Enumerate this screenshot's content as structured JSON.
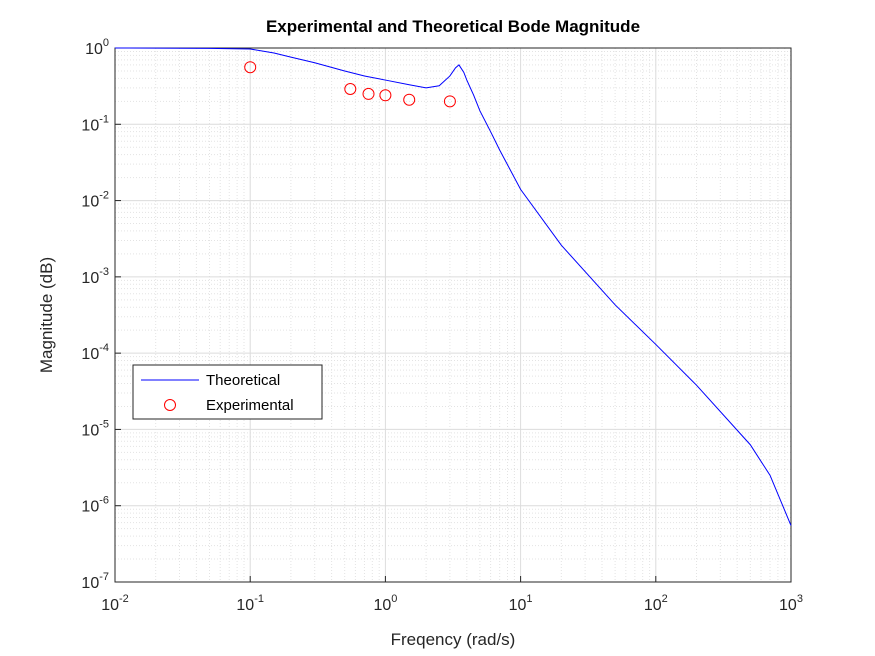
{
  "chart_data": {
    "type": "line",
    "title": "Experimental and Theoretical Bode Magnitude",
    "x_label": "Freqency (rad/s)",
    "y_label": "Magnitude (dB)",
    "xscale": "log",
    "yscale": "log",
    "xlim": [
      0.01,
      1000
    ],
    "ylim": [
      1e-07,
      1
    ],
    "xticks": [
      {
        "value": 0.01,
        "label": "10",
        "exponent": "-2"
      },
      {
        "value": 0.1,
        "label": "10",
        "exponent": "-1"
      },
      {
        "value": 1,
        "label": "10",
        "exponent": "0"
      },
      {
        "value": 10,
        "label": "10",
        "exponent": "1"
      },
      {
        "value": 100,
        "label": "10",
        "exponent": "2"
      },
      {
        "value": 1000,
        "label": "10",
        "exponent": "3"
      }
    ],
    "yticks": [
      {
        "value": 1e-07,
        "label": "10",
        "exponent": "-7"
      },
      {
        "value": 1e-06,
        "label": "10",
        "exponent": "-6"
      },
      {
        "value": 1e-05,
        "label": "10",
        "exponent": "-5"
      },
      {
        "value": 0.0001,
        "label": "10",
        "exponent": "-4"
      },
      {
        "value": 0.001,
        "label": "10",
        "exponent": "-3"
      },
      {
        "value": 0.01,
        "label": "10",
        "exponent": "-2"
      },
      {
        "value": 0.1,
        "label": "10",
        "exponent": "-1"
      },
      {
        "value": 1,
        "label": "10",
        "exponent": "0"
      }
    ],
    "grid": true,
    "minor_grid": true,
    "legend_location": "west",
    "series": [
      {
        "name": "Theoretical",
        "color": "#0000ff",
        "marker": "none",
        "x": [
          0.01,
          0.05,
          0.1,
          0.15,
          0.2,
          0.3,
          0.5,
          0.7,
          1,
          1.5,
          2,
          2.5,
          3,
          3.3,
          3.5,
          3.8,
          4,
          4.5,
          5,
          6,
          7,
          10,
          20,
          50,
          100,
          200,
          500,
          700,
          1000
        ],
        "values": [
          1.0,
          0.99,
          0.97,
          0.86,
          0.76,
          0.64,
          0.5,
          0.43,
          0.38,
          0.33,
          0.3,
          0.32,
          0.43,
          0.55,
          0.6,
          0.48,
          0.38,
          0.24,
          0.15,
          0.08,
          0.046,
          0.014,
          0.0026,
          0.00043,
          0.00013,
          3.8e-05,
          6.3e-06,
          2.5e-06,
          5.5e-07
        ]
      },
      {
        "name": "Experimental",
        "color": "#ff0000",
        "marker": "circle",
        "x": [
          0.1,
          0.55,
          0.75,
          1,
          1.5,
          3
        ],
        "values": [
          0.56,
          0.29,
          0.25,
          0.24,
          0.21,
          0.2
        ]
      }
    ]
  }
}
